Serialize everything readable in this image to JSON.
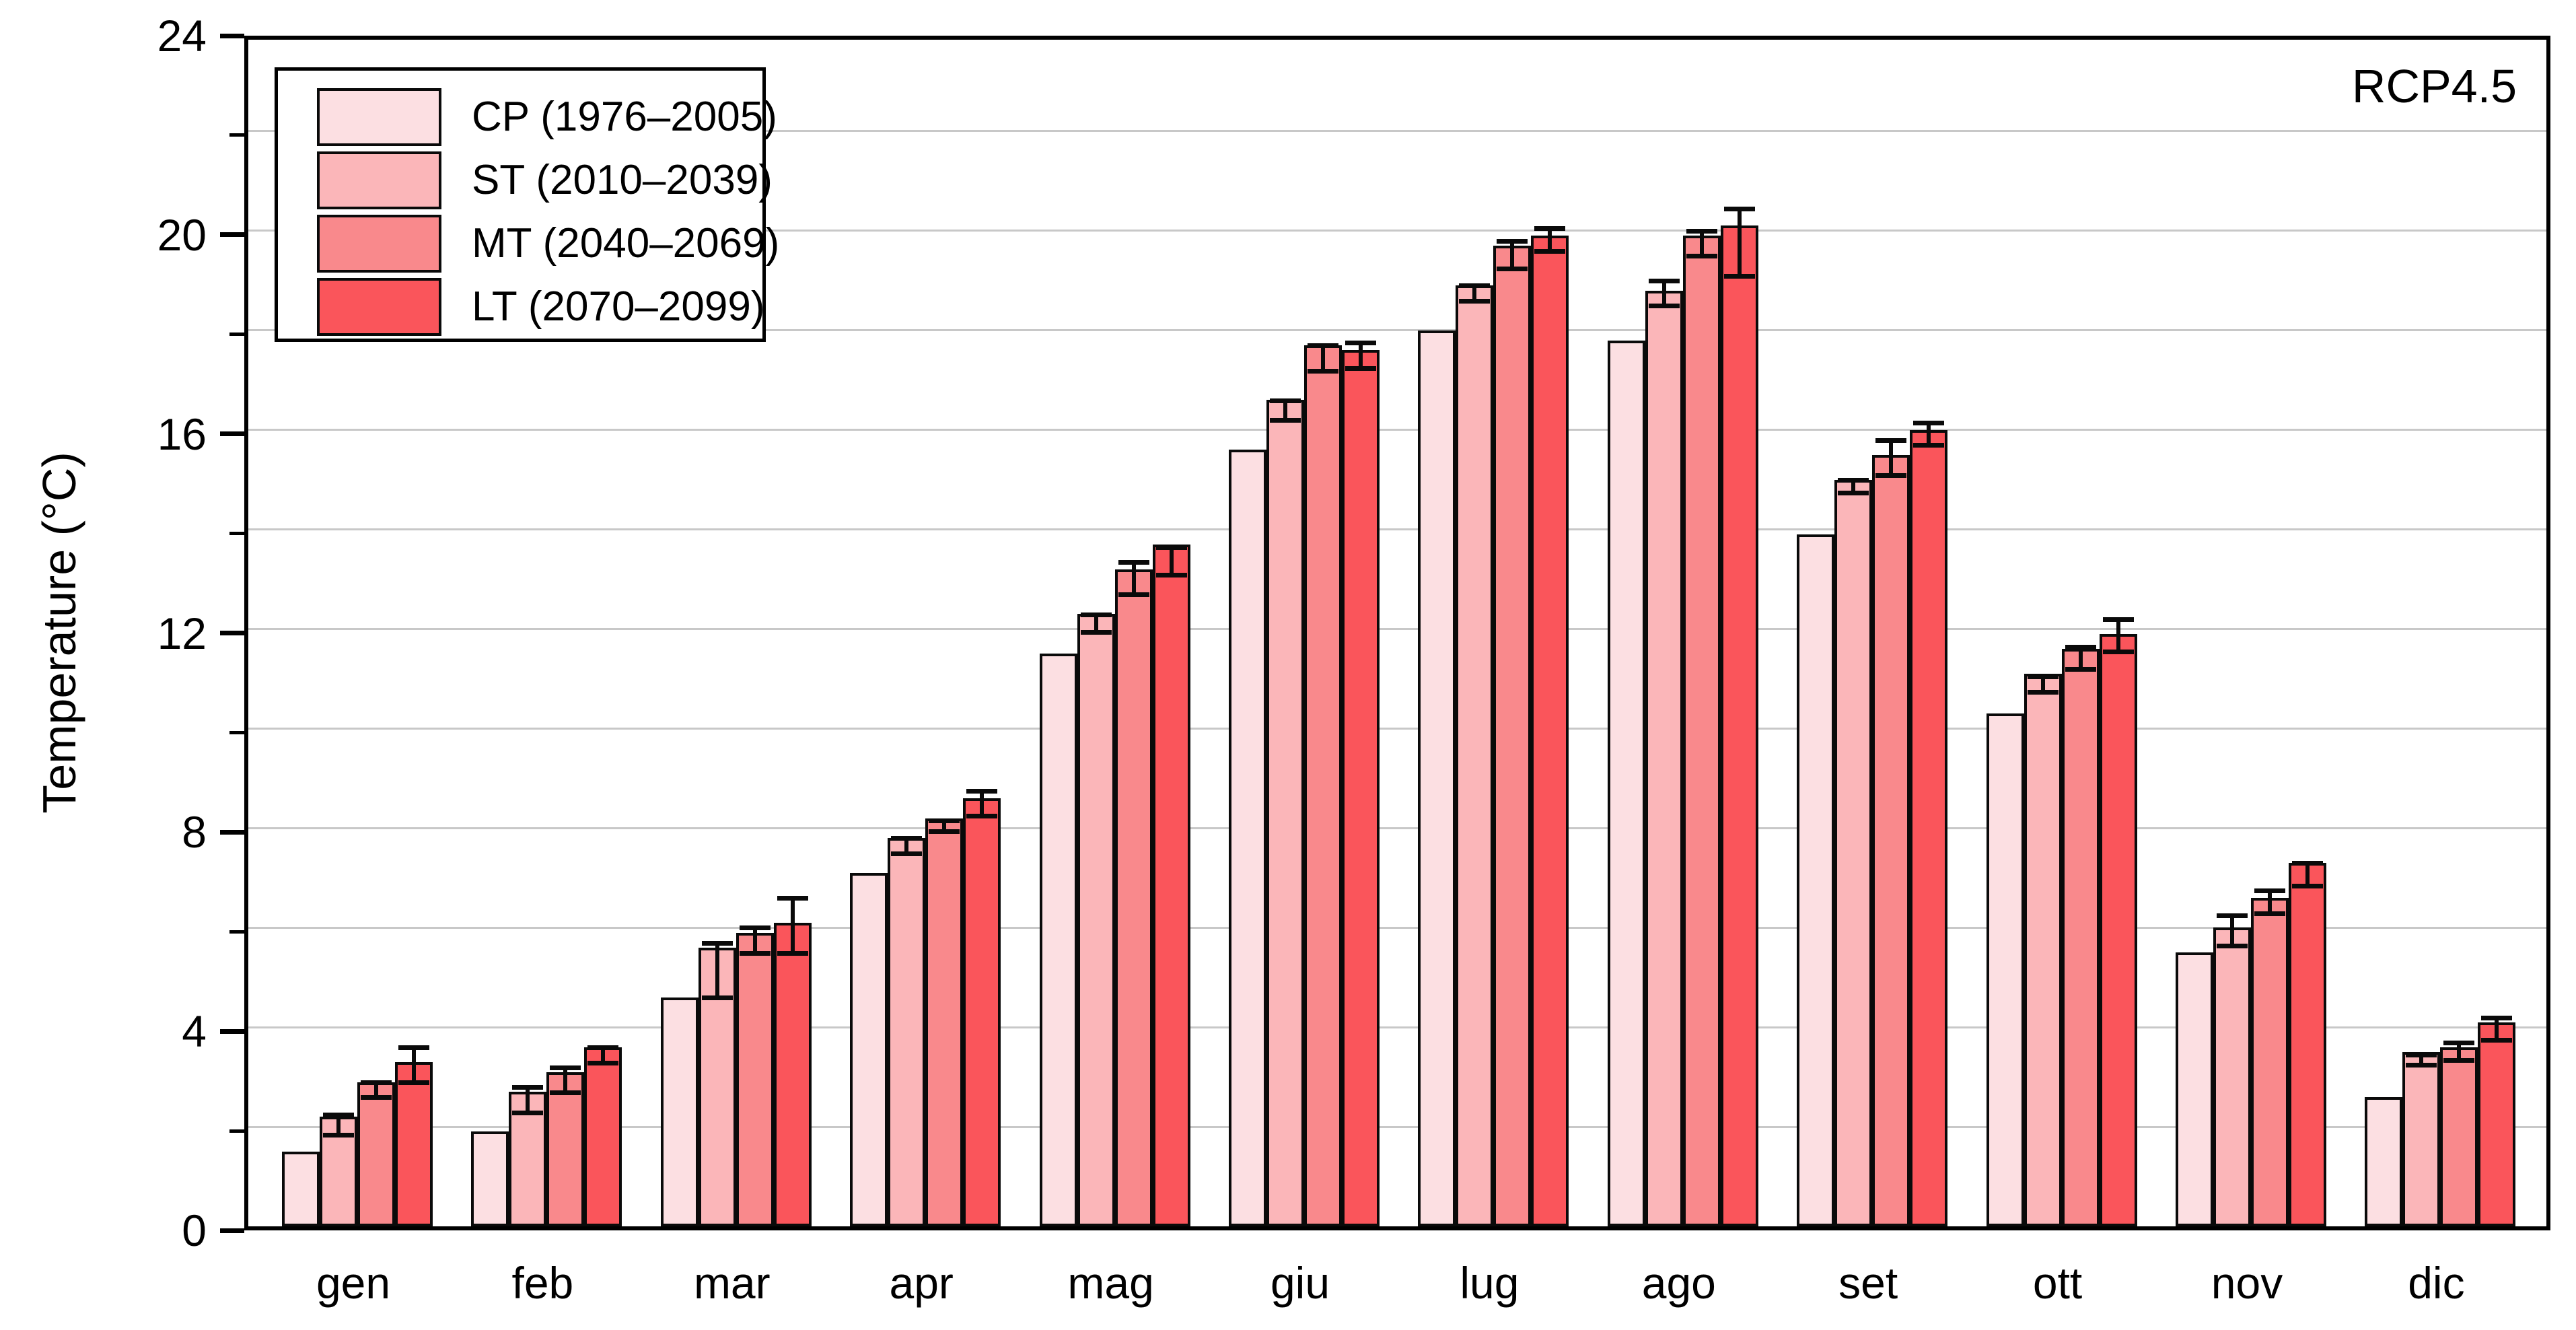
{
  "figure": {
    "scenario_label": "RCP4.5",
    "y_axis_title": "Temperature (°C)"
  },
  "chart_data": {
    "type": "bar",
    "title": "",
    "xlabel": "",
    "ylabel": "Temperature (°C)",
    "annotation": "RCP4.5",
    "ylim": [
      0,
      24
    ],
    "ytick_label_step": 4,
    "grid_step": 2,
    "grid": true,
    "legend_position": "top-left",
    "categories": [
      "gen",
      "feb",
      "mar",
      "apr",
      "mag",
      "giu",
      "lug",
      "ago",
      "set",
      "ott",
      "nov",
      "dic"
    ],
    "series": [
      {
        "name": "CP (1976–2005)",
        "color": "#fcdfe2",
        "values": [
          1.5,
          1.9,
          4.6,
          7.1,
          11.5,
          15.6,
          18.0,
          17.8,
          13.9,
          10.3,
          5.5,
          2.6
        ]
      },
      {
        "name": "ST (2010–2039)",
        "color": "#fbb6b9",
        "values": [
          2.2,
          2.7,
          5.6,
          7.8,
          12.3,
          16.6,
          18.9,
          18.8,
          15.0,
          11.1,
          6.0,
          3.5
        ],
        "err_up": [
          0.25,
          0.3,
          0.3,
          0.2,
          0.2,
          0.2,
          0.2,
          0.4,
          0.2,
          0.15,
          0.45,
          0.15
        ],
        "err_down": [
          0.25,
          0.3,
          0.9,
          0.2,
          0.25,
          0.3,
          0.2,
          0.2,
          0.15,
          0.25,
          0.25,
          0.15
        ]
      },
      {
        "name": "MT (2040–2069)",
        "color": "#f9898c",
        "values": [
          2.9,
          3.1,
          5.9,
          8.2,
          13.2,
          17.7,
          19.7,
          19.9,
          15.5,
          11.6,
          6.6,
          3.6
        ],
        "err_up": [
          0.2,
          0.3,
          0.3,
          0.15,
          0.35,
          0.2,
          0.3,
          0.3,
          0.5,
          0.25,
          0.35,
          0.3
        ],
        "err_down": [
          0.2,
          0.3,
          0.3,
          0.15,
          0.4,
          0.4,
          0.35,
          0.3,
          0.3,
          0.3,
          0.2,
          0.15
        ]
      },
      {
        "name": "LT (2070–2099)",
        "color": "#fa555b",
        "values": [
          3.3,
          3.6,
          6.1,
          8.6,
          13.7,
          17.6,
          19.9,
          20.1,
          16.0,
          11.9,
          7.3,
          4.1
        ],
        "err_up": [
          0.5,
          0.2,
          0.7,
          0.35,
          0.15,
          0.35,
          0.35,
          0.55,
          0.35,
          0.5,
          0.2,
          0.3
        ],
        "err_down": [
          0.3,
          0.2,
          0.5,
          0.25,
          0.5,
          0.25,
          0.2,
          0.9,
          0.2,
          0.25,
          0.35,
          0.25
        ]
      }
    ]
  }
}
